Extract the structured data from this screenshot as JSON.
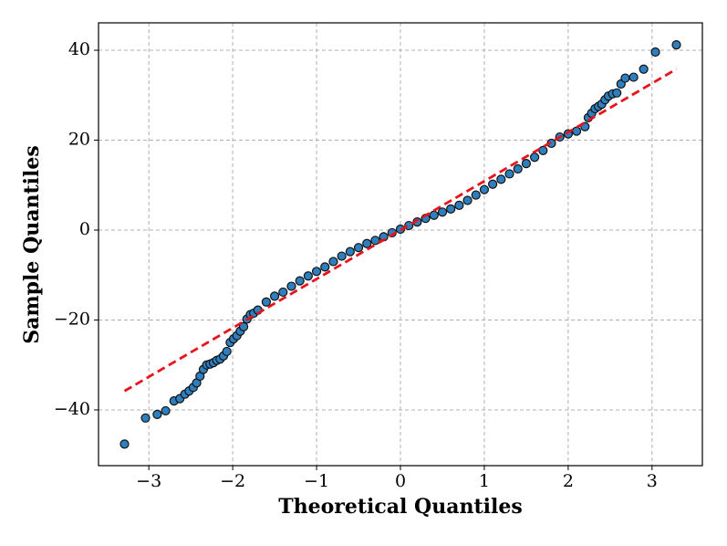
{
  "chart_data": {
    "type": "scatter",
    "xlabel": "Theoretical Quantiles",
    "ylabel": "Sample Quantiles",
    "xlim": [
      -3.6,
      3.6
    ],
    "ylim": [
      -52.4,
      46.1
    ],
    "xticks": [
      {
        "value": -3,
        "label": "−3"
      },
      {
        "value": -2,
        "label": "−2"
      },
      {
        "value": -1,
        "label": "−1"
      },
      0,
      1,
      2,
      3
    ],
    "yticks": [
      {
        "value": -40,
        "label": "−40"
      },
      {
        "value": -20,
        "label": "−20"
      },
      0,
      20,
      40
    ],
    "grid": true,
    "series": [
      {
        "color": "#2f7fbf",
        "marker": "circle",
        "x": [
          -3.29,
          -3.04,
          -2.9,
          -2.8,
          -2.7,
          -2.63,
          -2.57,
          -2.52,
          -2.47,
          -2.43,
          -2.39,
          -2.35,
          -2.31,
          -2.27,
          -2.23,
          -2.19,
          -2.15,
          -2.11,
          -2.07,
          -2.03,
          -1.99,
          -1.95,
          -1.91,
          -1.87,
          -1.83,
          -1.79,
          -1.75,
          -1.7,
          -1.6,
          -1.5,
          -1.4,
          -1.3,
          -1.2,
          -1.1,
          -1.0,
          -0.9,
          -0.8,
          -0.7,
          -0.6,
          -0.5,
          -0.4,
          -0.3,
          -0.2,
          -0.1,
          0,
          0.1,
          0.2,
          0.3,
          0.4,
          0.5,
          0.6,
          0.7,
          0.8,
          0.9,
          1.0,
          1.1,
          1.2,
          1.3,
          1.4,
          1.5,
          1.6,
          1.7,
          1.8,
          1.9,
          2.0,
          2.1,
          2.2,
          2.24,
          2.28,
          2.32,
          2.36,
          2.4,
          2.44,
          2.48,
          2.53,
          2.58,
          2.63,
          2.68,
          2.78,
          2.9,
          3.04,
          3.29
        ],
        "values": [
          -47.6,
          -41.8,
          -41.0,
          -40.2,
          -38.0,
          -37.5,
          -36.5,
          -35.8,
          -35.0,
          -34.0,
          -32.5,
          -31.0,
          -30.0,
          -29.8,
          -29.5,
          -29.0,
          -28.7,
          -28.0,
          -27.0,
          -25.0,
          -24.2,
          -23.5,
          -22.5,
          -21.5,
          -19.8,
          -18.8,
          -18.5,
          -17.8,
          -16.0,
          -14.7,
          -13.8,
          -12.5,
          -11.3,
          -10.2,
          -9.2,
          -8.2,
          -7.0,
          -5.8,
          -4.8,
          -3.9,
          -3.0,
          -2.3,
          -1.5,
          -0.6,
          0.2,
          1.0,
          1.8,
          2.6,
          3.3,
          4.0,
          4.7,
          5.5,
          6.6,
          7.8,
          9.0,
          10.2,
          11.3,
          12.5,
          13.6,
          14.8,
          16.2,
          17.7,
          19.3,
          20.7,
          21.4,
          22.0,
          23.0,
          25.0,
          26.0,
          27.0,
          27.5,
          28.0,
          29.0,
          29.8,
          30.3,
          30.5,
          32.5,
          33.8,
          34.0,
          35.8,
          39.6,
          41.2
        ]
      },
      {
        "color": "#e8141c",
        "style": "dashed line",
        "x": [
          -3.29,
          3.29
        ],
        "values": [
          -35.8,
          35.8
        ]
      }
    ]
  }
}
